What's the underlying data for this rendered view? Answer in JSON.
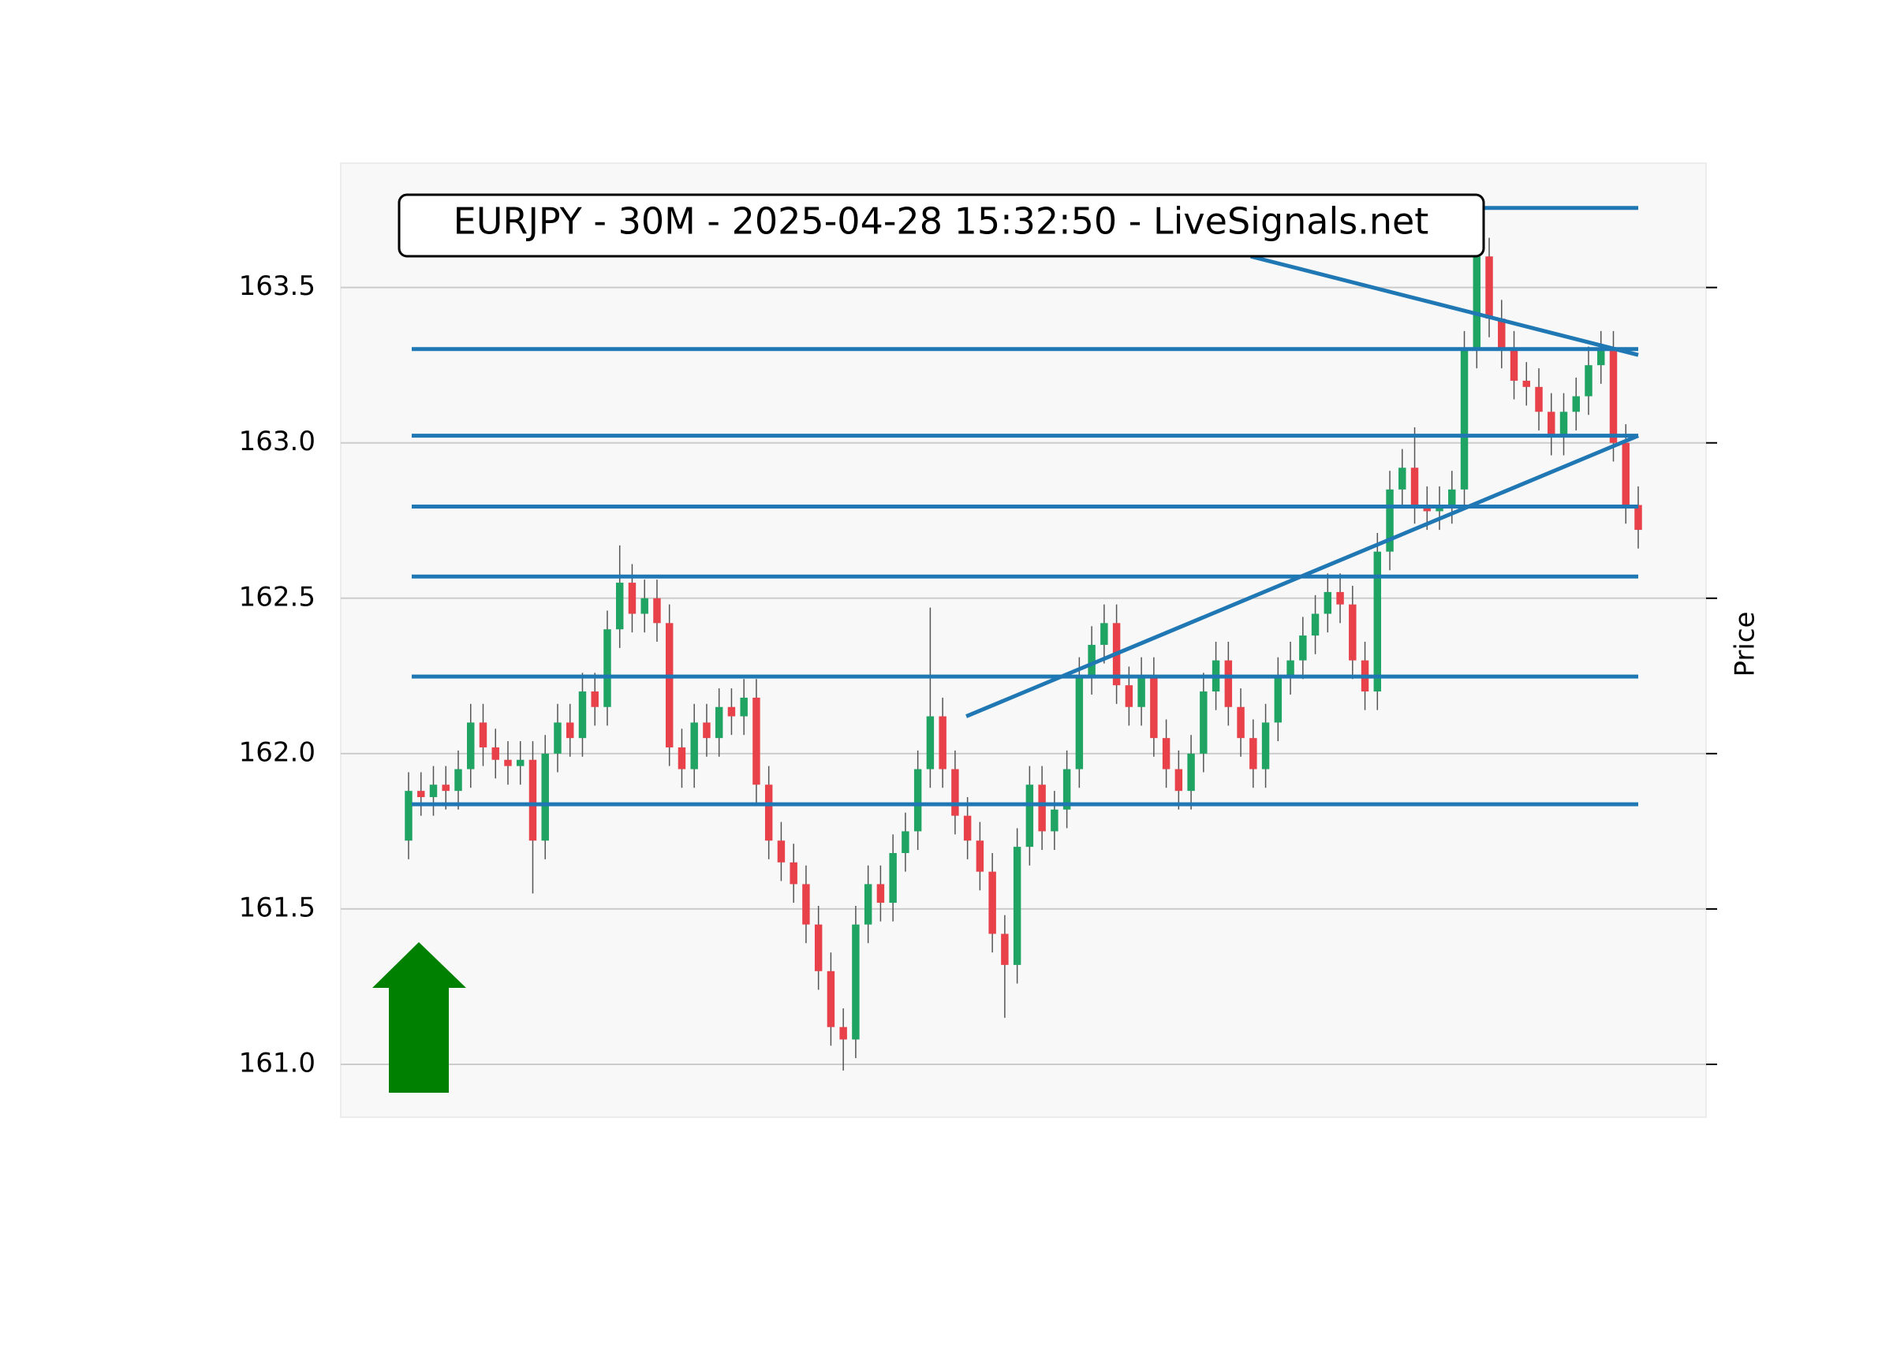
{
  "chart_data": {
    "type": "candlestick",
    "title": "EURJPY - 30M - 2025-04-28 15:32:50 - LiveSignals.net",
    "y_label": "Price",
    "ylim": [
      160.83,
      163.9
    ],
    "yticks": [
      {
        "value": 161,
        "label": "161.0"
      },
      161.5,
      {
        "value": 162,
        "label": "162.0"
      },
      162.5,
      {
        "value": 163,
        "label": "163.0"
      },
      163.5
    ],
    "grid": true,
    "up_color": "#1fa463",
    "down_color": "#e8414a",
    "line_color": "#1f77b4",
    "open": [
      161.72,
      161.88,
      161.86,
      161.9,
      161.88,
      161.95,
      162.1,
      162.02,
      161.98,
      161.96,
      161.98,
      161.72,
      162.0,
      162.1,
      162.05,
      162.2,
      162.15,
      162.4,
      162.55,
      162.45,
      162.5,
      162.42,
      162.02,
      161.95,
      162.1,
      162.05,
      162.15,
      162.12,
      162.18,
      161.9,
      161.72,
      161.65,
      161.58,
      161.45,
      161.3,
      161.12,
      161.08,
      161.45,
      161.58,
      161.52,
      161.68,
      161.75,
      161.95,
      162.12,
      161.95,
      161.8,
      161.72,
      161.62,
      161.42,
      161.32,
      161.7,
      161.9,
      161.75,
      161.82,
      161.95,
      162.25,
      162.35,
      162.42,
      162.22,
      162.15,
      162.25,
      162.05,
      161.95,
      161.88,
      162.0,
      162.2,
      162.3,
      162.15,
      162.05,
      161.95,
      162.1,
      162.25,
      162.3,
      162.38,
      162.45,
      162.52,
      162.48,
      162.3,
      162.2,
      162.65,
      162.85,
      162.92,
      162.8,
      162.78,
      162.8,
      162.85,
      163.3,
      163.6,
      163.4,
      163.3,
      163.2,
      163.18,
      163.1,
      163.02,
      163.1,
      163.15,
      163.25,
      163.3,
      163.0,
      162.8
    ],
    "high": [
      161.94,
      161.94,
      161.96,
      161.96,
      162.01,
      162.16,
      162.16,
      162.08,
      162.04,
      162.04,
      162.04,
      162.06,
      162.16,
      162.16,
      162.26,
      162.26,
      162.46,
      162.67,
      162.61,
      162.56,
      162.56,
      162.48,
      162.08,
      162.16,
      162.16,
      162.21,
      162.21,
      162.24,
      162.24,
      161.96,
      161.78,
      161.71,
      161.64,
      161.51,
      161.36,
      161.18,
      161.51,
      161.64,
      161.64,
      161.74,
      161.81,
      162.01,
      162.47,
      162.18,
      162.01,
      161.86,
      161.78,
      161.68,
      161.48,
      161.76,
      161.96,
      161.96,
      161.88,
      162.01,
      162.31,
      162.41,
      162.48,
      162.48,
      162.28,
      162.31,
      162.31,
      162.11,
      162.01,
      162.06,
      162.26,
      162.36,
      162.36,
      162.21,
      162.11,
      162.16,
      162.31,
      162.36,
      162.44,
      162.51,
      162.58,
      162.58,
      162.54,
      162.36,
      162.71,
      162.91,
      162.98,
      163.05,
      162.86,
      162.86,
      162.91,
      163.36,
      163.72,
      163.66,
      163.46,
      163.36,
      163.26,
      163.24,
      163.16,
      163.16,
      163.21,
      163.31,
      163.36,
      163.36,
      163.06,
      162.86
    ],
    "low": [
      161.66,
      161.8,
      161.8,
      161.82,
      161.82,
      161.89,
      161.96,
      161.92,
      161.9,
      161.9,
      161.55,
      161.66,
      161.94,
      161.99,
      161.99,
      162.09,
      162.09,
      162.34,
      162.39,
      162.39,
      162.36,
      161.96,
      161.89,
      161.89,
      161.99,
      161.99,
      162.06,
      162.06,
      161.84,
      161.66,
      161.59,
      161.52,
      161.39,
      161.24,
      161.06,
      160.98,
      161.02,
      161.39,
      161.46,
      161.46,
      161.62,
      161.69,
      161.89,
      161.89,
      161.74,
      161.66,
      161.56,
      161.36,
      161.15,
      161.26,
      161.64,
      161.69,
      161.69,
      161.76,
      161.89,
      162.19,
      162.29,
      162.16,
      162.09,
      162.09,
      161.99,
      161.89,
      161.82,
      161.82,
      161.94,
      162.14,
      162.09,
      161.99,
      161.89,
      161.89,
      162.04,
      162.19,
      162.24,
      162.32,
      162.39,
      162.42,
      162.24,
      162.14,
      162.14,
      162.59,
      162.79,
      162.74,
      162.72,
      162.72,
      162.74,
      162.79,
      163.24,
      163.34,
      163.24,
      163.14,
      163.12,
      163.04,
      162.96,
      162.96,
      163.04,
      163.09,
      163.19,
      162.94,
      162.74,
      162.66
    ],
    "close": [
      161.88,
      161.86,
      161.9,
      161.88,
      161.95,
      162.1,
      162.02,
      161.98,
      161.96,
      161.98,
      161.72,
      162.0,
      162.1,
      162.05,
      162.2,
      162.15,
      162.4,
      162.55,
      162.45,
      162.5,
      162.42,
      162.02,
      161.95,
      162.1,
      162.05,
      162.15,
      162.12,
      162.18,
      161.9,
      161.72,
      161.65,
      161.58,
      161.45,
      161.3,
      161.12,
      161.08,
      161.45,
      161.58,
      161.52,
      161.68,
      161.75,
      161.95,
      162.12,
      161.95,
      161.8,
      161.72,
      161.62,
      161.42,
      161.32,
      161.7,
      161.9,
      161.75,
      161.82,
      161.95,
      162.25,
      162.35,
      162.42,
      162.22,
      162.15,
      162.25,
      162.05,
      161.95,
      161.88,
      162.0,
      162.2,
      162.3,
      162.15,
      162.05,
      161.95,
      162.1,
      162.25,
      162.3,
      162.38,
      162.45,
      162.52,
      162.48,
      162.3,
      162.2,
      162.65,
      162.85,
      162.92,
      162.8,
      162.78,
      162.8,
      162.85,
      163.3,
      163.6,
      163.4,
      163.3,
      163.2,
      163.18,
      163.1,
      163.02,
      163.1,
      163.15,
      163.25,
      163.3,
      163.0,
      162.8,
      162.72
    ],
    "levels": [
      163.756,
      163.302,
      163.023,
      162.795,
      162.57,
      162.248,
      161.837
    ],
    "trendlines": [
      {
        "x": [
          44.9,
          99
        ],
        "y": [
          162.12,
          163.023
        ]
      },
      {
        "x": [
          67.8,
          99
        ],
        "y": [
          163.6,
          163.283
        ]
      }
    ],
    "signal": "up"
  }
}
